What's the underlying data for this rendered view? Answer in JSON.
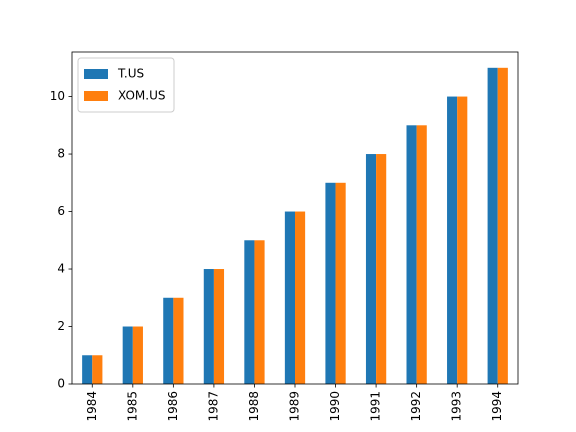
{
  "chart_data": {
    "type": "bar",
    "categories": [
      "1984",
      "1985",
      "1986",
      "1987",
      "1988",
      "1989",
      "1990",
      "1991",
      "1992",
      "1993",
      "1994"
    ],
    "series": [
      {
        "name": "T.US",
        "color": "#1f77b4",
        "values": [
          1,
          2,
          3,
          4,
          5,
          6,
          7,
          8,
          9,
          10,
          11
        ]
      },
      {
        "name": "XOM.US",
        "color": "#ff7f0e",
        "values": [
          1,
          2,
          3,
          4,
          5,
          6,
          7,
          8,
          9,
          10,
          11
        ]
      }
    ],
    "ylim": [
      0,
      11.55
    ],
    "yticks": [
      0,
      2,
      4,
      6,
      8,
      10
    ],
    "grid": false,
    "legend": "upper left"
  }
}
